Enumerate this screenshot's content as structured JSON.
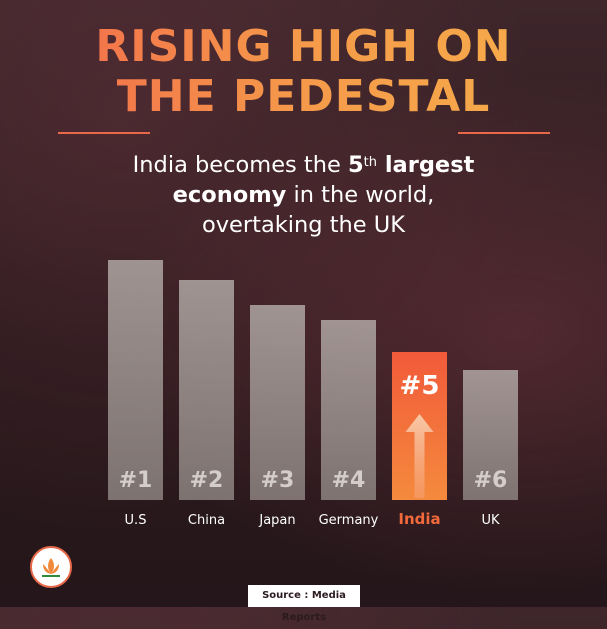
{
  "header": {
    "title_line1": "RISING HIGH ON",
    "title_line2": "THE PEDESTAL",
    "subtitle_line1_pre": "India becomes the ",
    "subtitle_line1_bold": "5",
    "subtitle_line1_sup": "th",
    "subtitle_line1_bold2": " largest",
    "subtitle_line2_bold": "economy",
    "subtitle_line2_rest": " in the world,",
    "subtitle_line3": "overtaking the UK"
  },
  "footer": {
    "source": "Source : Media Reports",
    "logo_icon": "lotus-logo-icon"
  },
  "colors": {
    "bar": "#a9a19d",
    "highlight": "#f26a3c",
    "title": "#f4764b",
    "rank_text": "#ded7d4"
  },
  "chart_data": {
    "type": "bar",
    "categories": [
      "U.S",
      "China",
      "Japan",
      "Germany",
      "India",
      "UK"
    ],
    "ranks": [
      "#1",
      "#2",
      "#3",
      "#4",
      "#5",
      "#6"
    ],
    "values": [
      240,
      220,
      195,
      180,
      148,
      130
    ],
    "highlight_index": 4,
    "title": "",
    "xlabel": "",
    "ylabel": "",
    "ylim": [
      0,
      240
    ],
    "grid": false,
    "legend": "none"
  }
}
